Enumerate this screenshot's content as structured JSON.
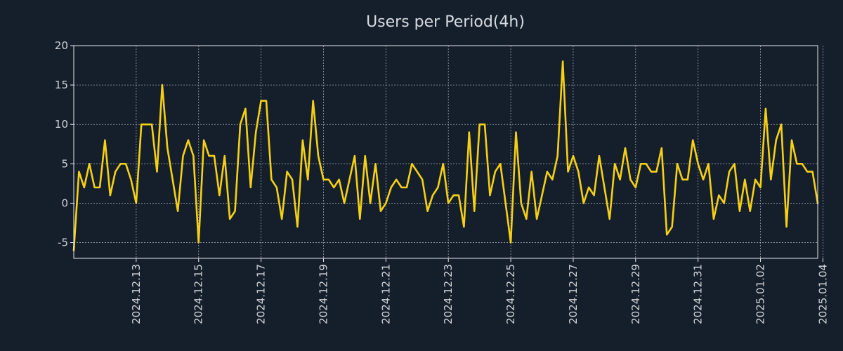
{
  "chart_data": {
    "type": "line",
    "title": "Users per Period(4h)",
    "xlabel": "",
    "ylabel": "",
    "ylim": [
      -7,
      20
    ],
    "yticks": [
      -5,
      0,
      5,
      10,
      15,
      20
    ],
    "yticklabels": [
      "-5",
      "0",
      "5",
      "10",
      "15",
      "20"
    ],
    "grid": true,
    "colors": {
      "background": "#151f2c",
      "line": "#f5d015",
      "text": "#d0d3d8"
    },
    "x_ticks": [
      {
        "label": "2024.12.13",
        "index": 12
      },
      {
        "label": "2024.12.15",
        "index": 24
      },
      {
        "label": "2024.12.17",
        "index": 36
      },
      {
        "label": "2024.12.19",
        "index": 48
      },
      {
        "label": "2024.12.21",
        "index": 60
      },
      {
        "label": "2024.12.23",
        "index": 72
      },
      {
        "label": "2024.12.25",
        "index": 84
      },
      {
        "label": "2024.12.27",
        "index": 96
      },
      {
        "label": "2024.12.29",
        "index": 108
      },
      {
        "label": "2024.12.31",
        "index": 120
      },
      {
        "label": "2025.01.02",
        "index": 132
      },
      {
        "label": "2025.01.04",
        "index": 144
      }
    ],
    "series": [
      {
        "name": "Users",
        "values": [
          -6,
          4,
          2,
          5,
          2,
          2,
          8,
          1,
          4,
          5,
          5,
          3,
          0,
          10,
          10,
          10,
          4,
          15,
          7,
          3,
          -1,
          6,
          8,
          6,
          -5,
          8,
          6,
          6,
          1,
          6,
          -2,
          -1,
          10,
          12,
          2,
          9,
          13,
          13,
          3,
          2,
          -2,
          4,
          3,
          -3,
          8,
          3,
          13,
          6,
          3,
          3,
          2,
          3,
          0,
          3,
          6,
          -2,
          6,
          0,
          5,
          -1,
          0,
          2,
          3,
          2,
          2,
          5,
          4,
          3,
          -1,
          1,
          2,
          5,
          0,
          1,
          1,
          -3,
          9,
          -1,
          10,
          10,
          1,
          4,
          5,
          0,
          -5,
          9,
          0,
          -2,
          4,
          -2,
          1,
          4,
          3,
          6,
          18,
          4,
          6,
          4,
          0,
          2,
          1,
          6,
          2,
          -2,
          5,
          3,
          7,
          3,
          2,
          5,
          5,
          4,
          4,
          7,
          -4,
          -3,
          5,
          3,
          3,
          8,
          5,
          3,
          5,
          -2,
          1,
          0,
          4,
          5,
          -1,
          3,
          -1,
          3,
          2,
          12,
          3,
          8,
          10,
          -3,
          8,
          5,
          5,
          4,
          4,
          0
        ]
      }
    ]
  }
}
